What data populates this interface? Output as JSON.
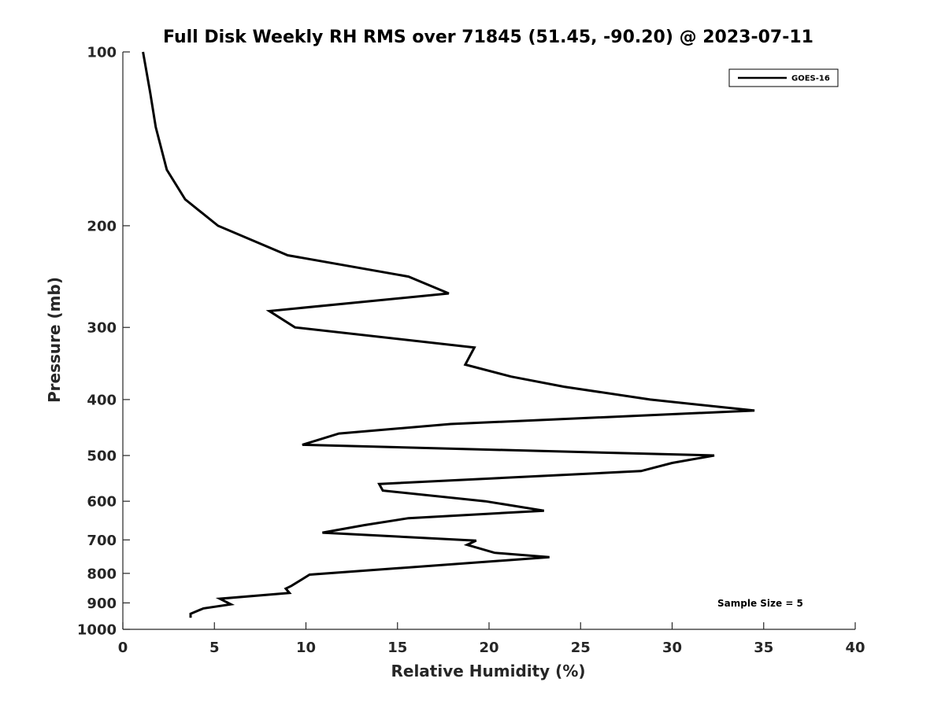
{
  "chart_data": {
    "type": "line",
    "title": "Full Disk Weekly RH RMS over 71845 (51.45, -90.20) @ 2023-07-11",
    "xlabel": "Relative Humidity (%)",
    "ylabel": "Pressure (mb)",
    "xlim": [
      0,
      40
    ],
    "ylim": [
      100,
      1000
    ],
    "yscale": "log",
    "y_reversed": true,
    "x_ticks": [
      "0",
      "5",
      "10",
      "15",
      "20",
      "25",
      "30",
      "35",
      "40"
    ],
    "y_ticks": [
      "100",
      "200",
      "300",
      "400",
      "500",
      "600",
      "700",
      "800",
      "900",
      "1000"
    ],
    "grid": false,
    "legend_position": "top-right",
    "series": [
      {
        "name": "GOES-16",
        "color": "#000000",
        "points": [
          [
            1.1,
            100
          ],
          [
            1.5,
            118
          ],
          [
            1.8,
            135
          ],
          [
            2.4,
            160
          ],
          [
            3.4,
            180
          ],
          [
            5.2,
            200
          ],
          [
            9.0,
            225
          ],
          [
            15.6,
            245
          ],
          [
            17.8,
            262
          ],
          [
            8.0,
            281
          ],
          [
            9.4,
            300
          ],
          [
            19.2,
            325
          ],
          [
            18.7,
            348
          ],
          [
            21.2,
            365
          ],
          [
            24.1,
            380
          ],
          [
            28.8,
            400
          ],
          [
            34.5,
            418
          ],
          [
            17.9,
            441
          ],
          [
            11.8,
            458
          ],
          [
            9.8,
            479
          ],
          [
            32.3,
            500
          ],
          [
            30.0,
            515
          ],
          [
            28.3,
            532
          ],
          [
            14.0,
            560
          ],
          [
            14.2,
            575
          ],
          [
            19.8,
            600
          ],
          [
            23.0,
            623
          ],
          [
            15.6,
            642
          ],
          [
            13.2,
            660
          ],
          [
            10.9,
            680
          ],
          [
            19.3,
            702
          ],
          [
            18.8,
            714
          ],
          [
            20.3,
            737
          ],
          [
            23.3,
            750
          ],
          [
            10.2,
            804
          ],
          [
            9.2,
            841
          ],
          [
            8.9,
            850
          ],
          [
            9.1,
            865
          ],
          [
            5.3,
            885
          ],
          [
            5.9,
            905
          ],
          [
            4.4,
            920
          ],
          [
            3.7,
            940
          ],
          [
            3.7,
            955
          ]
        ]
      }
    ],
    "annotations": [
      "Sample Size = 5"
    ]
  }
}
